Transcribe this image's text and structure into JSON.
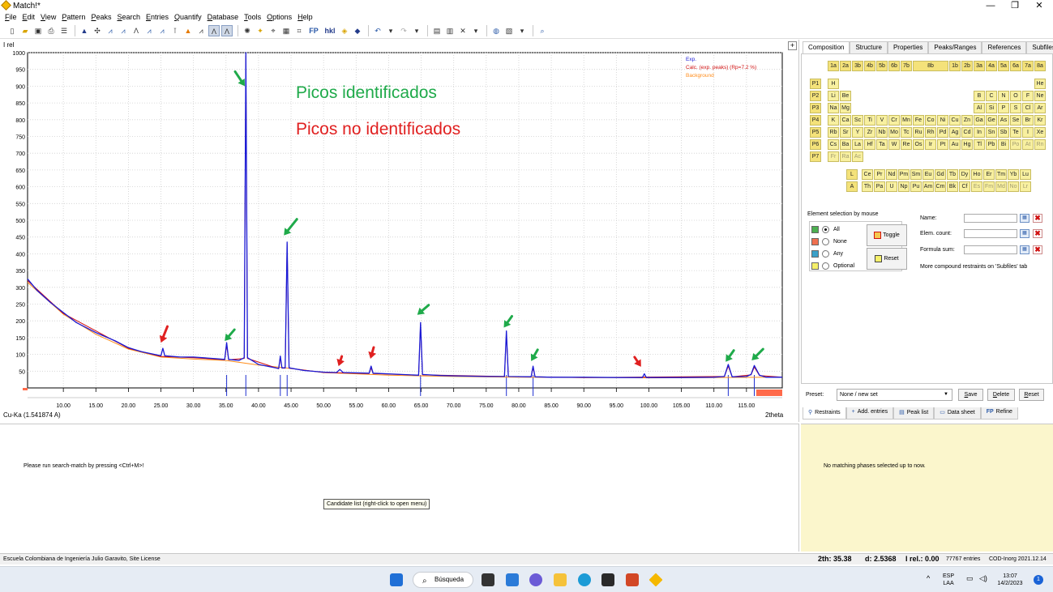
{
  "window": {
    "title": "Match!*",
    "minimize": "—",
    "maximize": "❐",
    "close": "✕"
  },
  "menu": [
    "File",
    "Edit",
    "View",
    "Pattern",
    "Peaks",
    "Search",
    "Entries",
    "Quantify",
    "Database",
    "Tools",
    "Options",
    "Help"
  ],
  "plot": {
    "y_label": "I rel",
    "x_unit_label": "2theta",
    "wavelength": "Cu-Ka (1.541874 A)",
    "legend": {
      "exp": "Exp.",
      "calc": "Calc. (exp. peaks) (Rp=7.2 %)",
      "background": "Background"
    },
    "annotation_identified": "Picos identificados",
    "annotation_unidentified": "Picos no identificados",
    "plus_button": "+"
  },
  "chart_data": {
    "type": "line",
    "xlabel": "2theta",
    "ylabel": "I rel",
    "xlim": [
      4.5,
      120.5
    ],
    "ylim": [
      0,
      1000
    ],
    "x_ticks": [
      "10.00",
      "15.00",
      "20.00",
      "25.00",
      "30.00",
      "35.00",
      "40.00",
      "45.00",
      "50.00",
      "55.00",
      "60.00",
      "65.00",
      "70.00",
      "75.00",
      "80.00",
      "85.00",
      "90.00",
      "95.00",
      "100.00",
      "105.00",
      "110.00",
      "115.00"
    ],
    "y_ticks": [
      "50",
      "100",
      "150",
      "200",
      "250",
      "300",
      "350",
      "400",
      "450",
      "500",
      "550",
      "600",
      "650",
      "700",
      "750",
      "800",
      "850",
      "900",
      "950",
      "1000"
    ],
    "series": [
      {
        "name": "Exp.",
        "color": "#1a1ad6",
        "x": [
          4.5,
          6,
          8,
          10,
          12,
          15,
          18,
          20,
          22,
          25,
          25.3,
          25.6,
          28,
          30,
          33,
          34.8,
          35.1,
          35.4,
          37,
          37.8,
          38.05,
          38.3,
          40,
          42,
          43.1,
          43.35,
          43.6,
          44.1,
          44.4,
          44.7,
          47,
          50,
          52,
          52.5,
          53,
          57,
          57.3,
          57.6,
          62,
          64.6,
          64.9,
          65.2,
          68,
          70,
          75,
          77.8,
          78.1,
          78.4,
          81.9,
          82.2,
          82.5,
          85,
          90,
          95,
          99,
          99.3,
          99.6,
          105,
          110,
          111.6,
          112.2,
          112.8,
          115,
          115.7,
          116.2,
          117,
          118,
          120.5
        ],
        "y": [
          325,
          290,
          255,
          225,
          195,
          165,
          140,
          120,
          108,
          96,
          118,
          96,
          92,
          92,
          88,
          85,
          135,
          85,
          82,
          90,
          1000,
          90,
          70,
          62,
          58,
          95,
          60,
          60,
          435,
          60,
          52,
          47,
          46,
          55,
          46,
          44,
          65,
          44,
          40,
          38,
          195,
          40,
          37,
          36,
          34,
          34,
          170,
          34,
          33,
          65,
          33,
          32,
          32,
          31,
          31,
          42,
          31,
          31,
          32,
          34,
          70,
          33,
          34,
          40,
          67,
          38,
          32,
          32
        ]
      },
      {
        "name": "Calc. (exp. peaks) (Rp=7.2 %)",
        "color": "#d01010",
        "x": [
          4.5,
          10,
          20,
          25,
          30,
          34.8,
          35.1,
          35.4,
          37.8,
          38.05,
          38.3,
          43.1,
          43.35,
          43.6,
          44.1,
          44.4,
          44.7,
          50,
          57,
          57.3,
          57.6,
          64.6,
          64.9,
          65.2,
          77.8,
          78.1,
          78.4,
          81.9,
          82.2,
          82.5,
          90,
          111.6,
          112.2,
          112.8,
          115.7,
          116.2,
          117,
          120.5
        ],
        "y": [
          320,
          222,
          118,
          94,
          90,
          84,
          128,
          84,
          88,
          990,
          88,
          57,
          90,
          59,
          59,
          428,
          59,
          46,
          43,
          60,
          43,
          38,
          190,
          39,
          34,
          165,
          34,
          33,
          60,
          33,
          31,
          34,
          65,
          33,
          39,
          62,
          37,
          32
        ]
      },
      {
        "name": "Background",
        "color": "#ff8c1a",
        "x": [
          4.5,
          10,
          15,
          20,
          25,
          30,
          35,
          40,
          45,
          50,
          60,
          70,
          80,
          90,
          100,
          110,
          120.5
        ],
        "y": [
          315,
          220,
          160,
          116,
          92,
          86,
          82,
          68,
          58,
          46,
          38,
          34,
          32,
          31,
          30,
          31,
          32
        ]
      }
    ],
    "phase_markers_2theta": [
      35.1,
      38.05,
      43.35,
      44.4,
      64.9,
      78.1,
      82.2,
      112.2,
      116.2
    ],
    "identified_peaks_2theta": [
      35.1,
      38.05,
      44.4,
      64.9,
      78.1,
      82.2,
      112.2,
      116.2
    ],
    "unidentified_peaks_2theta": [
      25.3,
      52.5,
      57.3,
      99.3
    ]
  },
  "right": {
    "tabs": [
      "Composition",
      "Structure",
      "Properties",
      "Peaks/Ranges",
      "References",
      "Subfiles"
    ],
    "group_labels": [
      "1a",
      "2a",
      "3b",
      "4b",
      "5b",
      "6b",
      "7b",
      "8b",
      "1b",
      "2b",
      "3a",
      "4a",
      "5a",
      "6a",
      "7a",
      "8a"
    ],
    "period_labels": [
      "P1",
      "P2",
      "P3",
      "P4",
      "P5",
      "P6",
      "P7"
    ],
    "p1": [
      "H",
      "He"
    ],
    "p2": [
      "Li",
      "Be",
      "B",
      "C",
      "N",
      "O",
      "F",
      "Ne"
    ],
    "p3": [
      "Na",
      "Mg",
      "Al",
      "Si",
      "P",
      "S",
      "Cl",
      "Ar"
    ],
    "p4": [
      "K",
      "Ca",
      "Sc",
      "Ti",
      "V",
      "Cr",
      "Mn",
      "Fe",
      "Co",
      "Ni",
      "Cu",
      "Zn",
      "Ga",
      "Ge",
      "As",
      "Se",
      "Br",
      "Kr"
    ],
    "p5": [
      "Rb",
      "Sr",
      "Y",
      "Zr",
      "Nb",
      "Mo",
      "Tc",
      "Ru",
      "Rh",
      "Pd",
      "Ag",
      "Cd",
      "In",
      "Sn",
      "Sb",
      "Te",
      "I",
      "Xe"
    ],
    "p6": [
      "Cs",
      "Ba",
      "La",
      "Hf",
      "Ta",
      "W",
      "Re",
      "Os",
      "Ir",
      "Pt",
      "Au",
      "Hg",
      "Tl",
      "Pb",
      "Bi",
      "Po",
      "At",
      "Rn"
    ],
    "p7": [
      "Fr",
      "Ra",
      "Ac"
    ],
    "lanthanides_label": "L",
    "lanthanides": [
      "Ce",
      "Pr",
      "Nd",
      "Pm",
      "Sm",
      "Eu",
      "Gd",
      "Tb",
      "Dy",
      "Ho",
      "Er",
      "Tm",
      "Yb",
      "Lu"
    ],
    "actinides_label": "A",
    "actinides": [
      "Th",
      "Pa",
      "U",
      "Np",
      "Pu",
      "Am",
      "Cm",
      "Bk",
      "Cf",
      "Es",
      "Fm",
      "Md",
      "No",
      "Lr"
    ],
    "selection_title": "Element selection by mouse",
    "selection_options": [
      {
        "label": "All",
        "color": "#4caf50"
      },
      {
        "label": "None",
        "color": "#f07050"
      },
      {
        "label": "Any",
        "color": "#3aa0c8"
      },
      {
        "label": "Optional",
        "color": "#f5f06a"
      }
    ],
    "toggle_label": "Toggle",
    "reset_label": "Reset",
    "name_label": "Name:",
    "elem_count_label": "Elem. count:",
    "formula_sum_label": "Formula sum:",
    "more_note": "More compound restraints on 'Subfiles' tab",
    "preset_label": "Preset:",
    "preset_value": "None / new set",
    "save_label": "Save",
    "delete_label": "Delete",
    "reset2_label": "Reset",
    "bottom_tabs": [
      "Restraints",
      "Add. entries",
      "Peak list",
      "Data sheet",
      "Refine"
    ],
    "fp": "FP"
  },
  "candidates": {
    "message": "Please run search-match by pressing <Ctrl+M>!",
    "tooltip": "Candidate list (right-click to open menu)"
  },
  "matching": {
    "message": "No matching phases selected up to now."
  },
  "status": {
    "license": "Escuela Colombiana de Ingeniería Julio Garavito, Site License",
    "twotheta": "2th:  35.38",
    "d": "d:  2.5368",
    "irel": "I rel.:  0.00",
    "entries": "77767 entries",
    "db": "COD-Inorg 2021.12.14"
  },
  "taskbar": {
    "search": "Búsqueda",
    "lang_top": "ESP",
    "lang_bottom": "LAA",
    "time": "13:07",
    "date": "14/2/2023",
    "notifications": "1"
  }
}
